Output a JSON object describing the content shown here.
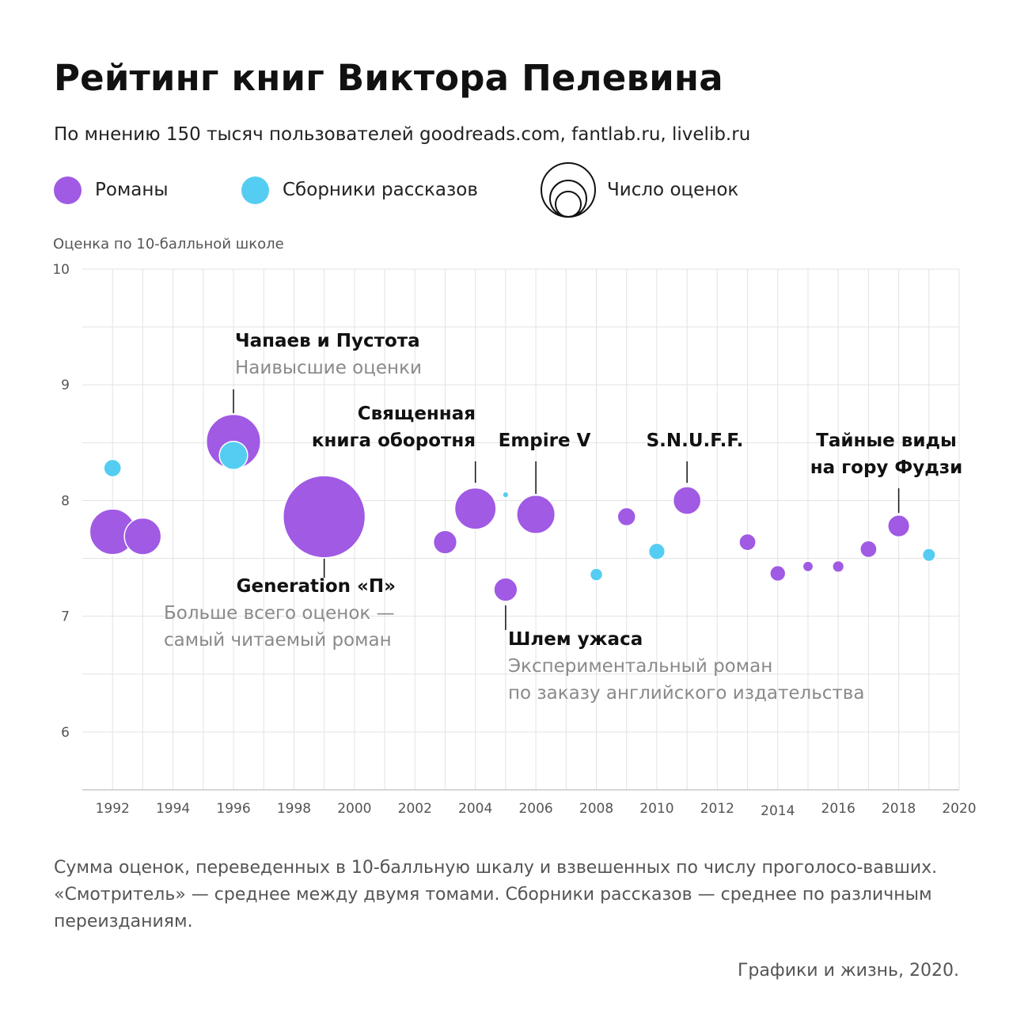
{
  "title": "Рейтинг книг Виктора Пелевина",
  "subtitle": "По мнению 150 тысяч пользователей goodreads.com, fantlab.ru, livelib.ru",
  "legend": {
    "novels": "Романы",
    "collections": "Сборники рассказов",
    "sizes": "Число оценок"
  },
  "colors": {
    "novel": "#a05ae3",
    "collection": "#55cdf2",
    "grid": "#e3e3e3",
    "axis": "#c8c8c8",
    "leader": "#111111"
  },
  "footnote": "Сумма оценок, переведенных в 10-балльную шкалу и взвешенных по числу проголосо-вавших. «Смотритель» — среднее между двумя томами. Сборники рассказов — среднее по различным переизданиям.",
  "credit": "Графики и жизнь, 2020.",
  "chart_data": {
    "type": "scatter",
    "ylabel": "Оценка по 10-балльной школе",
    "xlim": [
      1991,
      2020
    ],
    "ylim": [
      5.5,
      10
    ],
    "x_ticks": [
      1992,
      1994,
      1996,
      1998,
      2000,
      2002,
      2004,
      2006,
      2008,
      2010,
      2012,
      2014,
      2016,
      2018,
      2020
    ],
    "y_ticks": [
      6,
      7,
      8,
      9,
      10
    ],
    "grid": true,
    "legend_position": "top",
    "series": [
      {
        "name": "Романы",
        "color": "#a05ae3",
        "points": [
          {
            "year": 1992,
            "rating": 7.73,
            "votes": 17
          },
          {
            "year": 1993,
            "rating": 7.69,
            "votes": 11
          },
          {
            "year": 1996,
            "rating": 8.51,
            "votes": 24
          },
          {
            "year": 1999,
            "rating": 7.86,
            "votes": 55
          },
          {
            "year": 2003,
            "rating": 7.64,
            "votes": 4.5
          },
          {
            "year": 2004,
            "rating": 7.93,
            "votes": 14
          },
          {
            "year": 2005,
            "rating": 7.23,
            "votes": 4.5
          },
          {
            "year": 2006,
            "rating": 7.88,
            "votes": 12
          },
          {
            "year": 2009,
            "rating": 7.86,
            "votes": 2.7
          },
          {
            "year": 2011,
            "rating": 8.0,
            "votes": 6.3
          },
          {
            "year": 2013,
            "rating": 7.64,
            "votes": 2.3
          },
          {
            "year": 2014,
            "rating": 7.37,
            "votes": 2.0
          },
          {
            "year": 2015,
            "rating": 7.43,
            "votes": 0.9
          },
          {
            "year": 2016,
            "rating": 7.43,
            "votes": 1.1
          },
          {
            "year": 2017,
            "rating": 7.58,
            "votes": 2.3
          },
          {
            "year": 2018,
            "rating": 7.78,
            "votes": 3.9
          }
        ]
      },
      {
        "name": "Сборники рассказов",
        "color": "#55cdf2",
        "points": [
          {
            "year": 1992,
            "rating": 8.28,
            "votes": 2.5
          },
          {
            "year": 1996,
            "rating": 8.39,
            "votes": 6.5
          },
          {
            "year": 2005,
            "rating": 8.05,
            "votes": 0.3
          },
          {
            "year": 2008,
            "rating": 7.36,
            "votes": 1.3
          },
          {
            "year": 2010,
            "rating": 7.56,
            "votes": 2.2
          },
          {
            "year": 2019,
            "rating": 7.53,
            "votes": 1.4
          }
        ]
      }
    ],
    "annotations": [
      {
        "title": "Чапаев и Пустота",
        "sub": "Наивысшие оценки",
        "year": 1996,
        "rating": 8.51,
        "side": "above",
        "align": "start"
      },
      {
        "title": "Generation «П»",
        "sub": "Больше всего оценок — самый читаемый роман",
        "year": 1999,
        "rating": 7.86,
        "side": "below",
        "align": "end"
      },
      {
        "title": "Священная книга оборотня",
        "sub": "",
        "year": 2004,
        "rating": 7.93,
        "side": "above",
        "align": "end"
      },
      {
        "title": "Empire V",
        "sub": "",
        "year": 2006,
        "rating": 7.88,
        "side": "above",
        "align": "middle"
      },
      {
        "title": "S.N.U.F.F.",
        "sub": "",
        "year": 2011,
        "rating": 8.0,
        "side": "above",
        "align": "middle"
      },
      {
        "title": "Шлем ужаса",
        "sub": "Экспериментальный роман по заказу английского издательства",
        "year": 2005,
        "rating": 7.23,
        "side": "below",
        "align": "start"
      },
      {
        "title": "Тайные виды на гору Фудзи",
        "sub": "",
        "year": 2018,
        "rating": 7.78,
        "side": "above",
        "align": "middle"
      }
    ]
  }
}
